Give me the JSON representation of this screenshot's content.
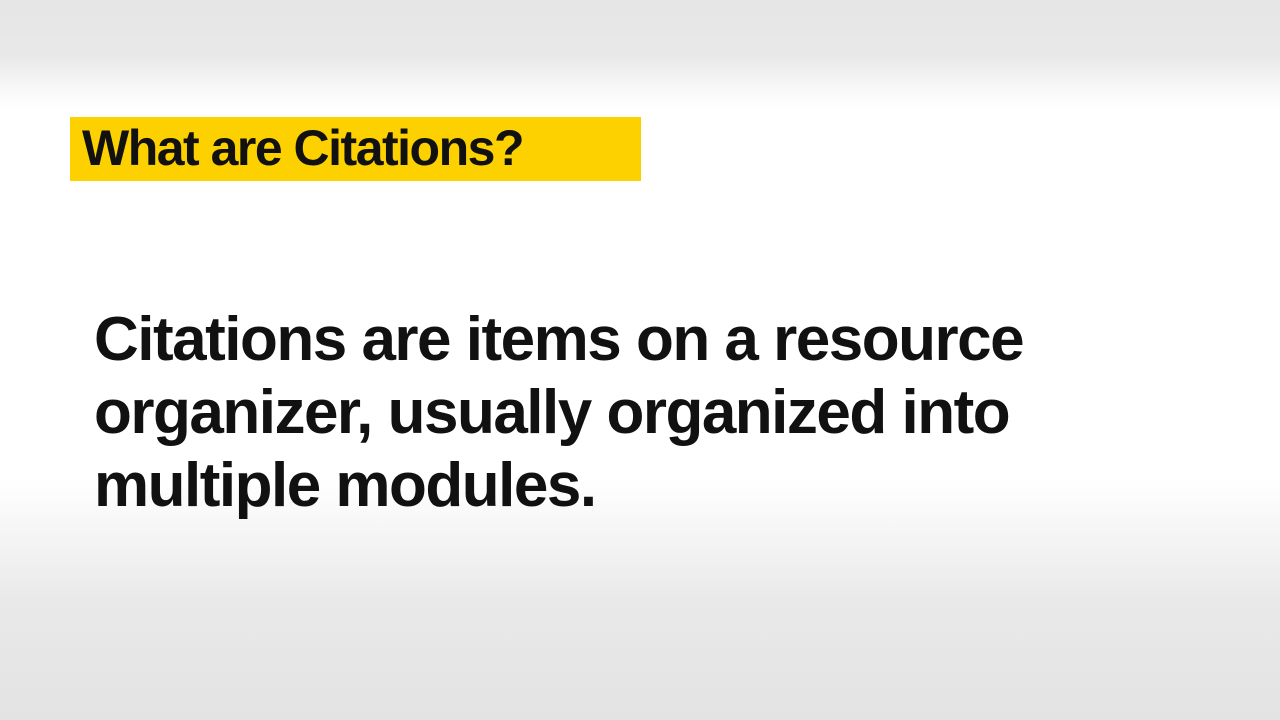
{
  "slide": {
    "title": "What are Citations?",
    "body_lines": [
      "Citations are items on a resource",
      "organizer, usually organized into",
      "multiple modules."
    ]
  },
  "colors": {
    "highlight": "#fdd000",
    "text": "#111111",
    "background": "#ffffff"
  }
}
